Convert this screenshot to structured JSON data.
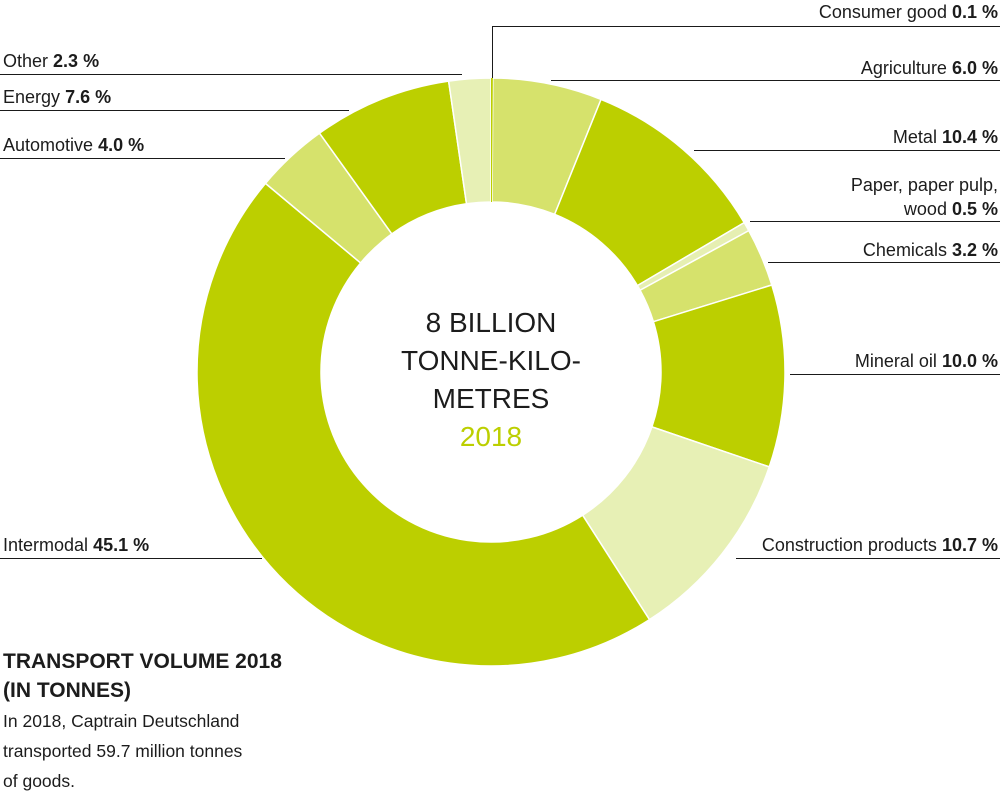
{
  "chart_data": {
    "type": "pie",
    "donut": true,
    "center_label": [
      "8 BILLION",
      "TONNE-KILO-",
      "METRES"
    ],
    "center_year": "2018",
    "categories": [
      "Consumer good",
      "Agriculture",
      "Metal",
      "Paper, paper pulp, wood",
      "Chemicals",
      "Mineral oil",
      "Construction products",
      "Intermodal",
      "Automotive",
      "Energy",
      "Other"
    ],
    "values": [
      0.1,
      6.0,
      10.4,
      0.5,
      3.2,
      10.0,
      10.7,
      45.1,
      4.0,
      7.6,
      2.3
    ],
    "value_labels": [
      "0.1 %",
      "6.0 %",
      "10.4 %",
      "0.5 %",
      "3.2 %",
      "10.0 %",
      "10.7 %",
      "45.1 %",
      "4.0 %",
      "7.6 %",
      "2.3 %"
    ],
    "slice_colors": [
      "#bccf00",
      "#d6e26c",
      "#bccf00",
      "#e6efb2",
      "#d6e26c",
      "#bccf00",
      "#e7f0b5",
      "#bccf00",
      "#d6e26c",
      "#bccf00",
      "#e7f0b5"
    ],
    "title_lines": [
      "TRANSPORT VOLUME 2018",
      "(IN TONNES)"
    ],
    "note_lines": [
      "In 2018, Captrain Deutschland",
      "transported 59.7 million tonnes",
      "of goods."
    ]
  },
  "colors": {
    "accent": "#bccf00",
    "text": "#1c1c1c",
    "leader_line": "#1a1a1a",
    "separator": "#ffffff"
  }
}
